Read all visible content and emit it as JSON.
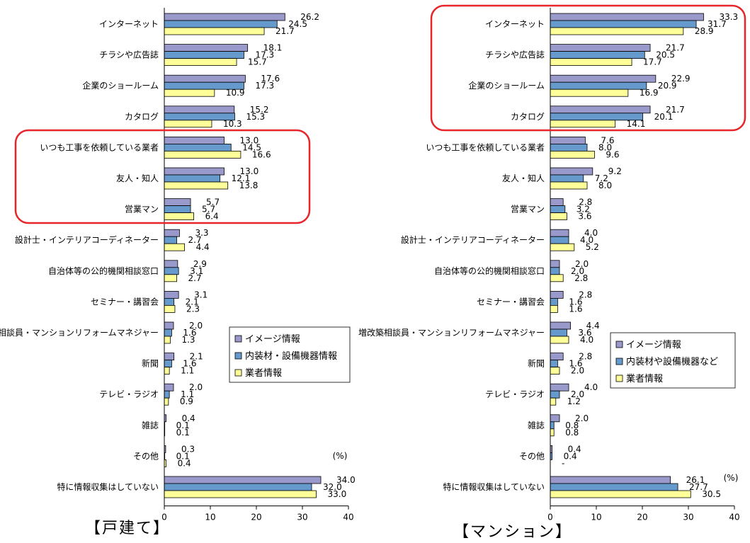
{
  "colors": {
    "image": "#9999CC",
    "material": "#6699CC",
    "vendor": "#FFFF99",
    "highlight": "#E8252A",
    "axis": "#000000"
  },
  "chart_data": [
    {
      "type": "bar",
      "orientation": "horizontal",
      "title": "【戸建て】",
      "unit_label": "(%)",
      "xlim": [
        0,
        40
      ],
      "xticks": [
        0,
        10,
        20,
        30,
        40
      ],
      "legend_placement": "lower-right",
      "categories": [
        "インターネット",
        "チラシや広告誌",
        "企業のショールーム",
        "カタログ",
        "いつも工事を依頼している業者",
        "友人・知人",
        "営業マン",
        "設計士・インテリアコーディネーター",
        "自治体等の公的機関相談窓口",
        "セミナー・講習会",
        "増改築相談員・マンションリフォームマネジャー",
        "新聞",
        "テレビ・ラジオ",
        "雑誌",
        "その他",
        "特に情報収集はしていない"
      ],
      "series": [
        {
          "name": "イメージ情報",
          "values": [
            26.2,
            18.1,
            17.6,
            15.2,
            13.0,
            13.0,
            5.7,
            3.3,
            2.9,
            3.1,
            2.0,
            2.1,
            2.0,
            0.4,
            0.3,
            34.0
          ]
        },
        {
          "name": "内装材・設備機器情報",
          "values": [
            24.5,
            17.3,
            17.3,
            15.3,
            14.5,
            12.1,
            5.7,
            2.7,
            3.1,
            2.1,
            1.6,
            1.6,
            1.1,
            0.1,
            0.1,
            32.0
          ]
        },
        {
          "name": "業者情報",
          "values": [
            21.7,
            15.7,
            10.9,
            10.3,
            16.6,
            13.8,
            6.4,
            4.4,
            2.7,
            2.3,
            1.3,
            1.1,
            0.9,
            0.1,
            0.4,
            33.0
          ]
        }
      ],
      "value_labels": [
        [
          "26.2",
          "18.1",
          "17.6",
          "15.2",
          "13.0",
          "13.0",
          "5.7",
          "3.3",
          "2.9",
          "3.1",
          "2.0",
          "2.1",
          "2.0",
          "0.4",
          "0.3",
          "34.0"
        ],
        [
          "24.5",
          "17.3",
          "17.3",
          "15.3",
          "14.5",
          "12.1",
          "5.7",
          "2.7",
          "3.1",
          "2.1",
          "1.6",
          "1.6",
          "1.1",
          "0.1",
          "0.1",
          "32.0"
        ],
        [
          "21.7",
          "15.7",
          "10.9",
          "10.3",
          "16.6",
          "13.8",
          "6.4",
          "4.4",
          "2.7",
          "2.3",
          "1.3",
          "1.1",
          "0.9",
          "0.1",
          "0.4",
          "33.0"
        ]
      ],
      "highlight_categories": [
        "いつも工事を依頼している業者",
        "友人・知人",
        "営業マン"
      ]
    },
    {
      "type": "bar",
      "orientation": "horizontal",
      "title": "【マンション】",
      "unit_label": "(%)",
      "xlim": [
        0,
        40
      ],
      "xticks": [
        0,
        10,
        20,
        30,
        40
      ],
      "legend_placement": "lower-right",
      "categories": [
        "インターネット",
        "チラシや広告誌",
        "企業のショールーム",
        "カタログ",
        "いつも工事を依頼している業者",
        "友人・知人",
        "営業マン",
        "設計士・インテリアコーディネーター",
        "自治体等の公的機関相談窓口",
        "セミナー・講習会",
        "増改築相談員・マンションリフォームマネジャー",
        "新聞",
        "テレビ・ラジオ",
        "雑誌",
        "その他",
        "特に情報収集はしていない"
      ],
      "series": [
        {
          "name": "イメージ情報",
          "values": [
            33.3,
            21.7,
            22.9,
            21.7,
            7.6,
            9.2,
            2.8,
            4.0,
            2.0,
            2.8,
            4.4,
            2.8,
            4.0,
            2.0,
            0.4,
            26.1
          ]
        },
        {
          "name": "内装材や設備機器など",
          "values": [
            31.7,
            20.5,
            20.9,
            20.1,
            8.0,
            7.2,
            3.2,
            4.0,
            2.0,
            1.6,
            3.6,
            1.6,
            2.0,
            0.8,
            0.4,
            27.7
          ]
        },
        {
          "name": "業者情報",
          "values": [
            28.9,
            17.7,
            16.9,
            14.1,
            9.6,
            8.0,
            3.6,
            5.2,
            2.8,
            1.6,
            4.0,
            2.0,
            1.2,
            0.8,
            0.0,
            30.5
          ]
        }
      ],
      "value_labels": [
        [
          "33.3",
          "21.7",
          "22.9",
          "21.7",
          "7.6",
          "9.2",
          "2.8",
          "4.0",
          "2.0",
          "2.8",
          "4.4",
          "2.8",
          "4.0",
          "2.0",
          "0.4",
          "26.1"
        ],
        [
          "31.7",
          "20.5",
          "20.9",
          "20.1",
          "8.0",
          "7.2",
          "3.2",
          "4.0",
          "2.0",
          "1.6",
          "3.6",
          "1.6",
          "2.0",
          "0.8",
          "0.4",
          "27.7"
        ],
        [
          "28.9",
          "17.7",
          "16.9",
          "14.1",
          "9.6",
          "8.0",
          "3.6",
          "5.2",
          "2.8",
          "1.6",
          "4.0",
          "2.0",
          "1.2",
          "0.8",
          "-",
          "30.5"
        ]
      ],
      "highlight_categories": [
        "インターネット",
        "チラシや広告誌",
        "企業のショールーム",
        "カタログ"
      ]
    }
  ]
}
